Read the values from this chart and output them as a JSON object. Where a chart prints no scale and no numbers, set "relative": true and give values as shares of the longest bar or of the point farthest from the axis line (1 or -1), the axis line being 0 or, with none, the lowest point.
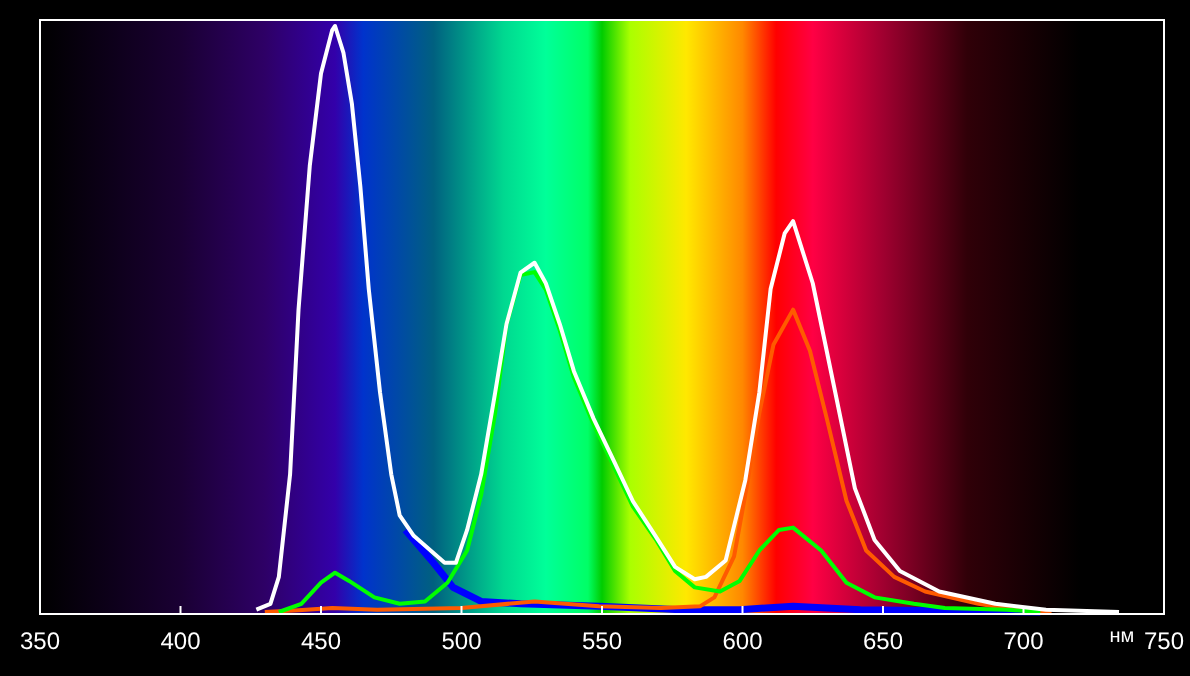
{
  "chart_data": {
    "type": "line",
    "relative": true,
    "xlabel": "нм",
    "xlim": [
      350,
      750
    ],
    "xticks": [
      350,
      400,
      450,
      500,
      550,
      600,
      650,
      700,
      750
    ],
    "grid": false,
    "marker": "none",
    "line_style": "solid",
    "series": [
      {
        "color": "#0000ff",
        "x": [
          480,
          490,
          497,
          507,
          521,
          549,
          578,
          599,
          618,
          642,
          706
        ],
        "values": [
          0.14,
          0.084,
          0.042,
          0.018,
          0.014,
          0.01,
          0.004,
          0.004,
          0.01,
          0.004,
          0
        ]
      },
      {
        "color": "#ff5a00",
        "x": [
          430,
          442,
          454,
          470,
          500,
          526,
          549,
          571,
          585,
          590,
          597,
          601,
          606,
          611,
          618,
          624,
          630,
          637,
          644,
          654,
          665,
          684,
          697,
          710
        ],
        "values": [
          0,
          0.003,
          0.007,
          0.004,
          0.007,
          0.018,
          0.01,
          0.007,
          0.01,
          0.025,
          0.095,
          0.2,
          0.34,
          0.456,
          0.516,
          0.446,
          0.33,
          0.19,
          0.105,
          0.06,
          0.035,
          0.014,
          0.004,
          0
        ]
      },
      {
        "color": "#00ff00",
        "x": [
          435,
          443,
          450,
          455,
          460,
          469,
          478,
          487,
          495,
          502,
          507,
          512,
          516,
          521,
          526,
          530,
          535,
          540,
          547,
          554,
          561,
          569,
          576,
          583,
          592,
          599,
          606,
          613,
          618,
          628,
          637,
          647,
          661,
          672,
          694,
          706
        ],
        "values": [
          0,
          0.014,
          0.05,
          0.067,
          0.053,
          0.025,
          0.014,
          0.018,
          0.05,
          0.105,
          0.2,
          0.34,
          0.49,
          0.575,
          0.58,
          0.55,
          0.48,
          0.4,
          0.32,
          0.25,
          0.18,
          0.125,
          0.07,
          0.042,
          0.035,
          0.053,
          0.105,
          0.14,
          0.144,
          0.105,
          0.05,
          0.025,
          0.014,
          0.007,
          0.004,
          0
        ]
      },
      {
        "color": "#ffffff",
        "x": [
          427,
          432,
          435,
          439,
          442,
          446,
          450,
          454,
          455,
          458,
          461,
          464,
          467,
          471,
          475,
          478,
          483,
          489,
          494,
          498,
          502,
          507,
          512,
          516,
          521,
          526,
          530,
          535,
          540,
          547,
          554,
          561,
          569,
          576,
          583,
          587,
          594,
          601,
          606,
          610,
          615,
          618,
          625,
          633,
          640,
          647,
          656,
          670,
          690,
          708,
          734
        ],
        "values": [
          0.004,
          0.014,
          0.06,
          0.235,
          0.516,
          0.761,
          0.919,
          0.993,
          1.0,
          0.954,
          0.867,
          0.726,
          0.551,
          0.375,
          0.235,
          0.165,
          0.13,
          0.105,
          0.084,
          0.084,
          0.14,
          0.235,
          0.375,
          0.491,
          0.579,
          0.596,
          0.561,
          0.491,
          0.411,
          0.33,
          0.26,
          0.189,
          0.13,
          0.077,
          0.056,
          0.06,
          0.088,
          0.225,
          0.375,
          0.551,
          0.646,
          0.667,
          0.561,
          0.375,
          0.211,
          0.123,
          0.07,
          0.035,
          0.014,
          0.004,
          0
        ]
      }
    ]
  }
}
